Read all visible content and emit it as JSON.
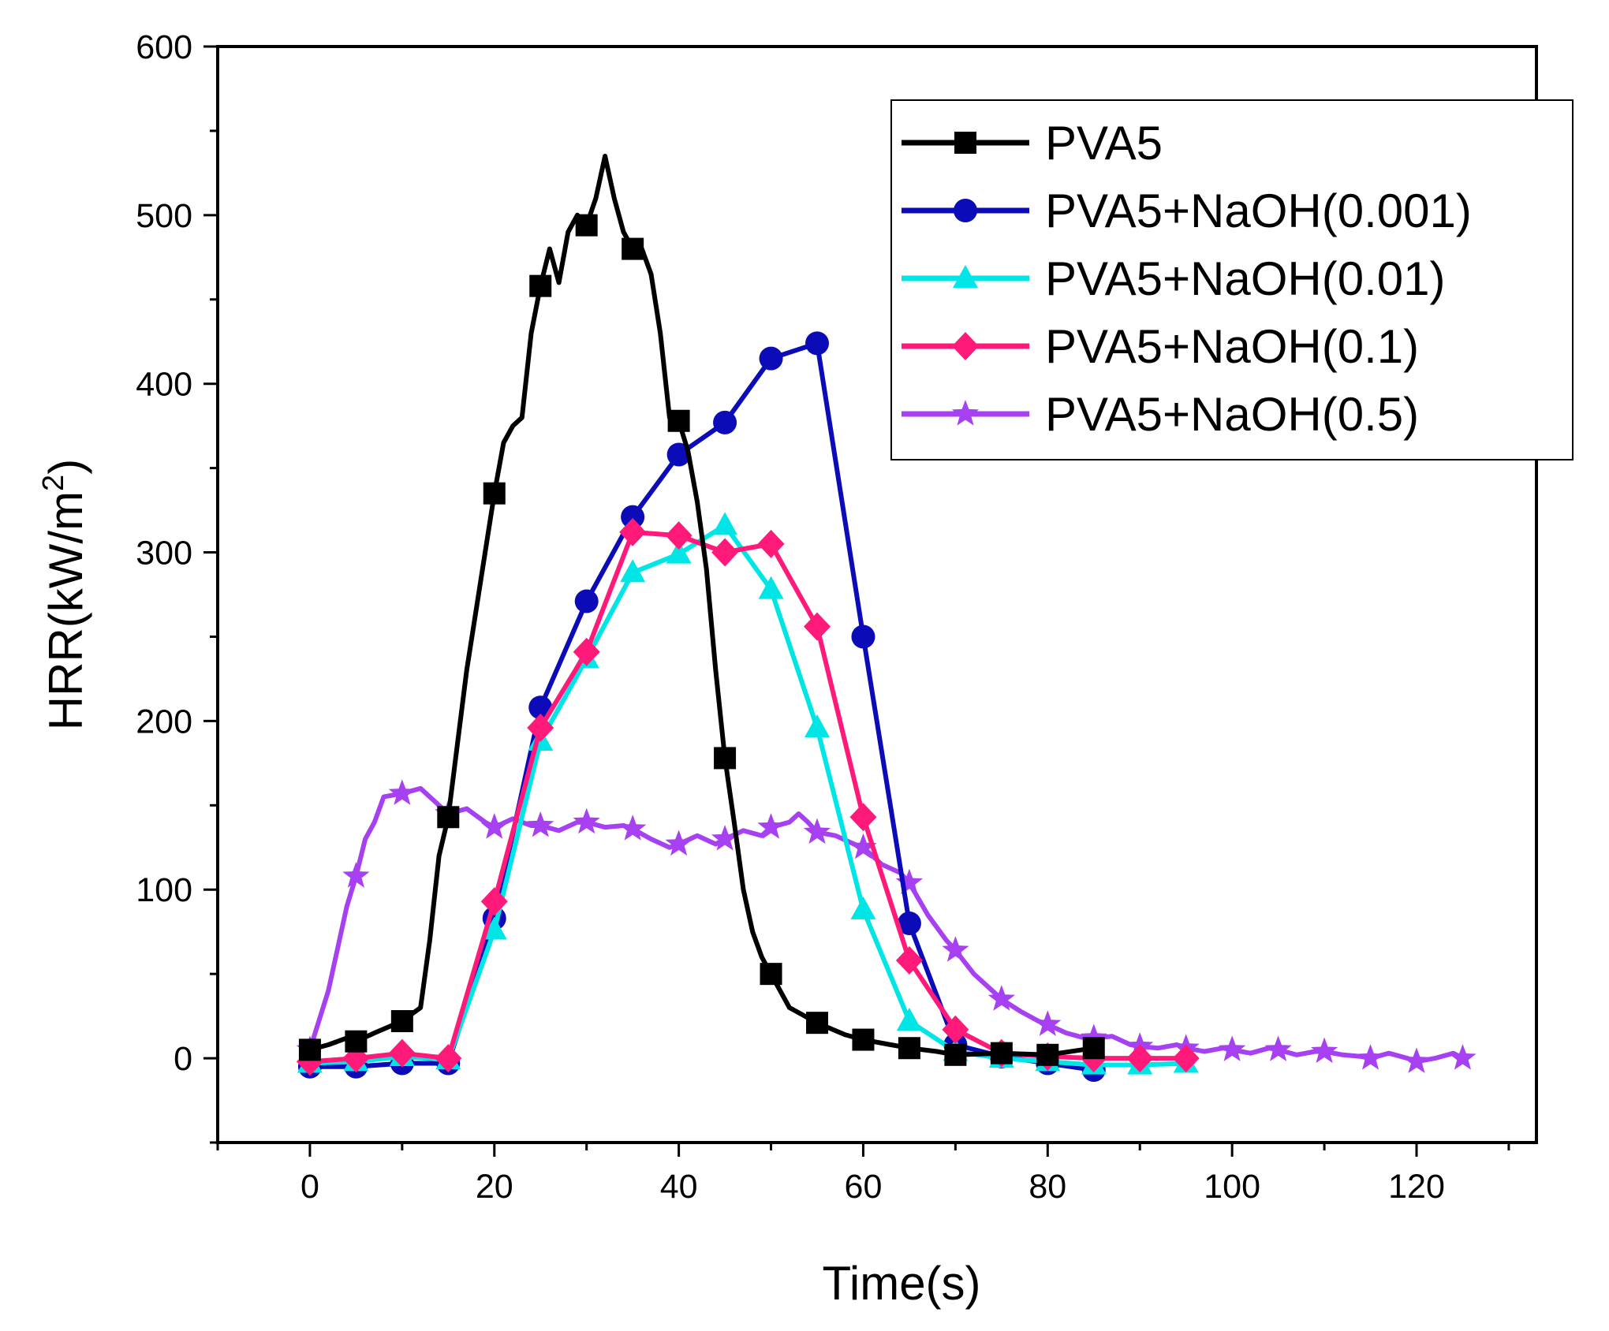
{
  "chart_data": {
    "type": "line",
    "title": "",
    "xlabel": "Time(s)",
    "ylabel_main": "HRR(kW/m",
    "ylabel_sup": "2",
    "ylabel_close": ")",
    "xlim": [
      -10,
      133
    ],
    "ylim": [
      -50,
      600
    ],
    "xticks": [
      0,
      20,
      40,
      60,
      80,
      100,
      120
    ],
    "yticks": [
      0,
      100,
      200,
      300,
      400,
      500,
      600
    ],
    "legend_position": "top-right",
    "series": [
      {
        "name": "PVA5",
        "color": "#000000",
        "marker": "square",
        "line": [
          [
            0,
            5
          ],
          [
            2,
            8
          ],
          [
            4,
            12
          ],
          [
            5,
            10
          ],
          [
            7,
            15
          ],
          [
            10,
            22
          ],
          [
            12,
            30
          ],
          [
            13,
            70
          ],
          [
            14,
            120
          ],
          [
            15,
            143
          ],
          [
            17,
            230
          ],
          [
            19,
            300
          ],
          [
            20,
            335
          ],
          [
            21,
            365
          ],
          [
            22,
            375
          ],
          [
            23,
            380
          ],
          [
            24,
            430
          ],
          [
            25,
            458
          ],
          [
            26,
            480
          ],
          [
            27,
            460
          ],
          [
            28,
            490
          ],
          [
            29,
            500
          ],
          [
            30,
            494
          ],
          [
            31,
            510
          ],
          [
            32,
            535
          ],
          [
            33,
            510
          ],
          [
            34,
            490
          ],
          [
            35,
            480
          ],
          [
            36,
            480
          ],
          [
            37,
            465
          ],
          [
            38,
            430
          ],
          [
            39,
            380
          ],
          [
            40,
            378
          ],
          [
            41,
            360
          ],
          [
            42,
            330
          ],
          [
            43,
            290
          ],
          [
            44,
            230
          ],
          [
            45,
            178
          ],
          [
            46,
            140
          ],
          [
            47,
            100
          ],
          [
            48,
            75
          ],
          [
            49,
            60
          ],
          [
            50,
            50
          ],
          [
            52,
            30
          ],
          [
            55,
            21
          ],
          [
            58,
            14
          ],
          [
            60,
            11
          ],
          [
            63,
            8
          ],
          [
            65,
            6
          ],
          [
            68,
            4
          ],
          [
            70,
            2
          ],
          [
            75,
            3
          ],
          [
            80,
            2
          ],
          [
            85,
            6
          ]
        ],
        "markers": [
          [
            0,
            5
          ],
          [
            5,
            10
          ],
          [
            10,
            22
          ],
          [
            15,
            143
          ],
          [
            20,
            335
          ],
          [
            25,
            458
          ],
          [
            30,
            494
          ],
          [
            35,
            480
          ],
          [
            40,
            378
          ],
          [
            45,
            178
          ],
          [
            50,
            50
          ],
          [
            55,
            21
          ],
          [
            60,
            11
          ],
          [
            65,
            6
          ],
          [
            70,
            2
          ],
          [
            75,
            3
          ],
          [
            80,
            2
          ],
          [
            85,
            6
          ]
        ]
      },
      {
        "name": "PVA5+NaOH(0.001)",
        "color": "#0b0bb8",
        "marker": "circle",
        "line": [
          [
            0,
            -5
          ],
          [
            5,
            -5
          ],
          [
            10,
            -3
          ],
          [
            15,
            -3
          ],
          [
            20,
            83
          ],
          [
            25,
            208
          ],
          [
            30,
            271
          ],
          [
            35,
            321
          ],
          [
            40,
            358
          ],
          [
            45,
            377
          ],
          [
            50,
            415
          ],
          [
            55,
            424
          ],
          [
            60,
            250
          ],
          [
            65,
            80
          ],
          [
            70,
            8
          ],
          [
            75,
            1
          ],
          [
            80,
            -3
          ],
          [
            85,
            -7
          ]
        ],
        "markers": [
          [
            0,
            -5
          ],
          [
            5,
            -5
          ],
          [
            10,
            -3
          ],
          [
            15,
            -3
          ],
          [
            20,
            83
          ],
          [
            25,
            208
          ],
          [
            30,
            271
          ],
          [
            35,
            321
          ],
          [
            40,
            358
          ],
          [
            45,
            377
          ],
          [
            50,
            415
          ],
          [
            55,
            424
          ],
          [
            60,
            250
          ],
          [
            65,
            80
          ],
          [
            70,
            8
          ],
          [
            75,
            1
          ],
          [
            80,
            -3
          ],
          [
            85,
            -7
          ]
        ]
      },
      {
        "name": "PVA5+NaOH(0.01)",
        "color": "#00e5e5",
        "marker": "triangle",
        "line": [
          [
            0,
            -3
          ],
          [
            5,
            -2
          ],
          [
            10,
            1
          ],
          [
            15,
            -1
          ],
          [
            20,
            76
          ],
          [
            25,
            188
          ],
          [
            30,
            237
          ],
          [
            35,
            288
          ],
          [
            40,
            299
          ],
          [
            45,
            316
          ],
          [
            50,
            278
          ],
          [
            55,
            196
          ],
          [
            60,
            88
          ],
          [
            65,
            22
          ],
          [
            70,
            4
          ],
          [
            75,
            0
          ],
          [
            80,
            -2
          ],
          [
            85,
            -4
          ],
          [
            90,
            -4
          ],
          [
            95,
            -3
          ]
        ],
        "markers": [
          [
            0,
            -3
          ],
          [
            5,
            -2
          ],
          [
            10,
            1
          ],
          [
            15,
            -1
          ],
          [
            20,
            76
          ],
          [
            25,
            188
          ],
          [
            30,
            237
          ],
          [
            35,
            288
          ],
          [
            40,
            299
          ],
          [
            45,
            316
          ],
          [
            50,
            278
          ],
          [
            55,
            196
          ],
          [
            60,
            88
          ],
          [
            65,
            22
          ],
          [
            70,
            4
          ],
          [
            75,
            0
          ],
          [
            80,
            -2
          ],
          [
            85,
            -4
          ],
          [
            90,
            -4
          ],
          [
            95,
            -3
          ]
        ]
      },
      {
        "name": "PVA5+NaOH(0.1)",
        "color": "#ff1a7a",
        "marker": "diamond",
        "line": [
          [
            0,
            -2
          ],
          [
            5,
            0
          ],
          [
            10,
            3
          ],
          [
            15,
            0
          ],
          [
            20,
            93
          ],
          [
            25,
            196
          ],
          [
            30,
            241
          ],
          [
            35,
            312
          ],
          [
            40,
            310
          ],
          [
            45,
            300
          ],
          [
            50,
            305
          ],
          [
            55,
            256
          ],
          [
            60,
            143
          ],
          [
            65,
            58
          ],
          [
            70,
            17
          ],
          [
            75,
            3
          ],
          [
            80,
            1
          ],
          [
            85,
            0
          ],
          [
            90,
            0
          ],
          [
            95,
            0
          ]
        ],
        "markers": [
          [
            0,
            -2
          ],
          [
            5,
            0
          ],
          [
            10,
            3
          ],
          [
            15,
            0
          ],
          [
            20,
            93
          ],
          [
            25,
            196
          ],
          [
            30,
            241
          ],
          [
            35,
            312
          ],
          [
            40,
            310
          ],
          [
            45,
            300
          ],
          [
            50,
            305
          ],
          [
            55,
            256
          ],
          [
            60,
            143
          ],
          [
            65,
            58
          ],
          [
            70,
            17
          ],
          [
            75,
            3
          ],
          [
            80,
            1
          ],
          [
            85,
            0
          ],
          [
            90,
            0
          ],
          [
            95,
            0
          ]
        ]
      },
      {
        "name": "PVA5+NaOH(0.5)",
        "color": "#a640f0",
        "marker": "star",
        "line": [
          [
            0,
            5
          ],
          [
            2,
            40
          ],
          [
            4,
            90
          ],
          [
            5,
            108
          ],
          [
            6,
            130
          ],
          [
            7,
            140
          ],
          [
            8,
            155
          ],
          [
            10,
            157
          ],
          [
            12,
            160
          ],
          [
            14,
            150
          ],
          [
            15,
            145
          ],
          [
            17,
            148
          ],
          [
            19,
            140
          ],
          [
            20,
            137
          ],
          [
            22,
            142
          ],
          [
            24,
            138
          ],
          [
            25,
            138
          ],
          [
            27,
            135
          ],
          [
            29,
            140
          ],
          [
            30,
            140
          ],
          [
            32,
            137
          ],
          [
            34,
            138
          ],
          [
            35,
            136
          ],
          [
            37,
            130
          ],
          [
            39,
            125
          ],
          [
            40,
            127
          ],
          [
            42,
            132
          ],
          [
            44,
            127
          ],
          [
            45,
            130
          ],
          [
            47,
            135
          ],
          [
            49,
            132
          ],
          [
            50,
            137
          ],
          [
            52,
            140
          ],
          [
            53,
            145
          ],
          [
            54,
            140
          ],
          [
            55,
            134
          ],
          [
            57,
            132
          ],
          [
            59,
            127
          ],
          [
            60,
            125
          ],
          [
            62,
            115
          ],
          [
            64,
            110
          ],
          [
            65,
            104
          ],
          [
            67,
            85
          ],
          [
            69,
            70
          ],
          [
            70,
            64
          ],
          [
            72,
            50
          ],
          [
            74,
            40
          ],
          [
            75,
            35
          ],
          [
            77,
            28
          ],
          [
            79,
            22
          ],
          [
            80,
            20
          ],
          [
            82,
            15
          ],
          [
            84,
            12
          ],
          [
            85,
            12
          ],
          [
            87,
            13
          ],
          [
            89,
            8
          ],
          [
            90,
            7
          ],
          [
            92,
            6
          ],
          [
            94,
            8
          ],
          [
            95,
            6
          ],
          [
            97,
            4
          ],
          [
            99,
            6
          ],
          [
            100,
            5
          ],
          [
            102,
            3
          ],
          [
            104,
            6
          ],
          [
            105,
            5
          ],
          [
            107,
            2
          ],
          [
            109,
            4
          ],
          [
            110,
            4
          ],
          [
            112,
            2
          ],
          [
            114,
            1
          ],
          [
            115,
            0
          ],
          [
            117,
            3
          ],
          [
            119,
            0
          ],
          [
            120,
            -2
          ],
          [
            122,
            0
          ],
          [
            124,
            3
          ],
          [
            125,
            0
          ]
        ],
        "markers": [
          [
            0,
            5
          ],
          [
            5,
            108
          ],
          [
            10,
            157
          ],
          [
            15,
            145
          ],
          [
            20,
            137
          ],
          [
            25,
            138
          ],
          [
            30,
            140
          ],
          [
            35,
            136
          ],
          [
            40,
            127
          ],
          [
            45,
            130
          ],
          [
            50,
            137
          ],
          [
            55,
            134
          ],
          [
            60,
            125
          ],
          [
            65,
            104
          ],
          [
            70,
            64
          ],
          [
            75,
            35
          ],
          [
            80,
            20
          ],
          [
            85,
            12
          ],
          [
            90,
            7
          ],
          [
            95,
            6
          ],
          [
            100,
            5
          ],
          [
            105,
            5
          ],
          [
            110,
            4
          ],
          [
            115,
            0
          ],
          [
            120,
            -2
          ],
          [
            125,
            0
          ]
        ]
      }
    ]
  }
}
